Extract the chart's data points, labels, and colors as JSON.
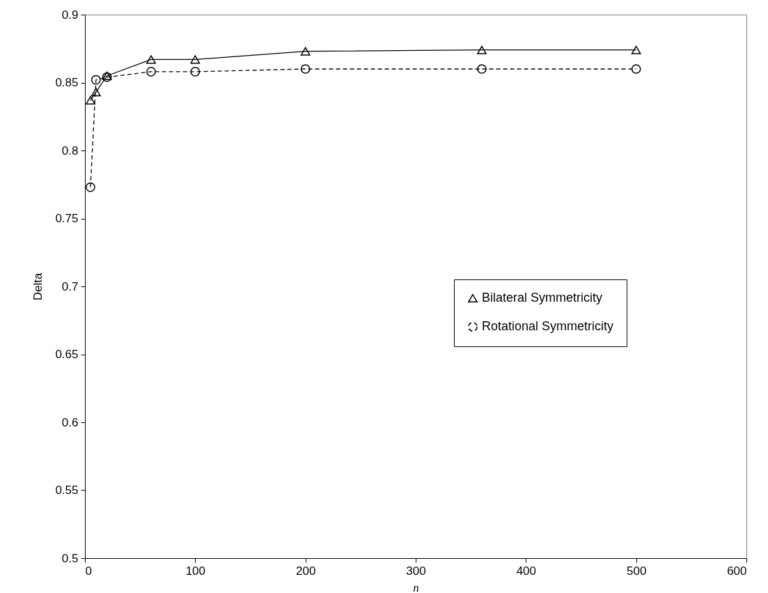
{
  "chart_data": {
    "type": "line",
    "xlabel": "n",
    "ylabel": "Delta",
    "xlim": [
      0,
      600
    ],
    "xticks": [
      0,
      100,
      200,
      300,
      400,
      500,
      600
    ],
    "ylim": [
      0.5,
      0.9
    ],
    "yticks": [
      {
        "value": 0.5,
        "label": "0.5"
      },
      0.55,
      {
        "value": 0.6,
        "label": "0.6"
      },
      0.65,
      {
        "value": 0.7,
        "label": "0.7"
      },
      0.75,
      {
        "value": 0.8,
        "label": "0.8"
      },
      0.85,
      {
        "value": 0.9,
        "label": "0.9"
      }
    ],
    "grid": false,
    "legend": "right",
    "x": [
      5,
      10,
      20,
      60,
      100,
      200,
      360,
      500
    ],
    "series": [
      {
        "name": "Bilateral Symmetricity",
        "color": "#000000",
        "marker": "triangle",
        "line_style": "solid",
        "values": [
          0.837,
          0.843,
          0.855,
          0.867,
          0.867,
          0.873,
          0.874,
          0.874
        ]
      },
      {
        "name": "Rotational Symmetricity",
        "color": "#000000",
        "marker": "circle",
        "line_style": "dashed",
        "values": [
          0.773,
          0.852,
          0.854,
          0.858,
          0.858,
          0.86,
          0.86,
          0.86
        ]
      }
    ]
  }
}
